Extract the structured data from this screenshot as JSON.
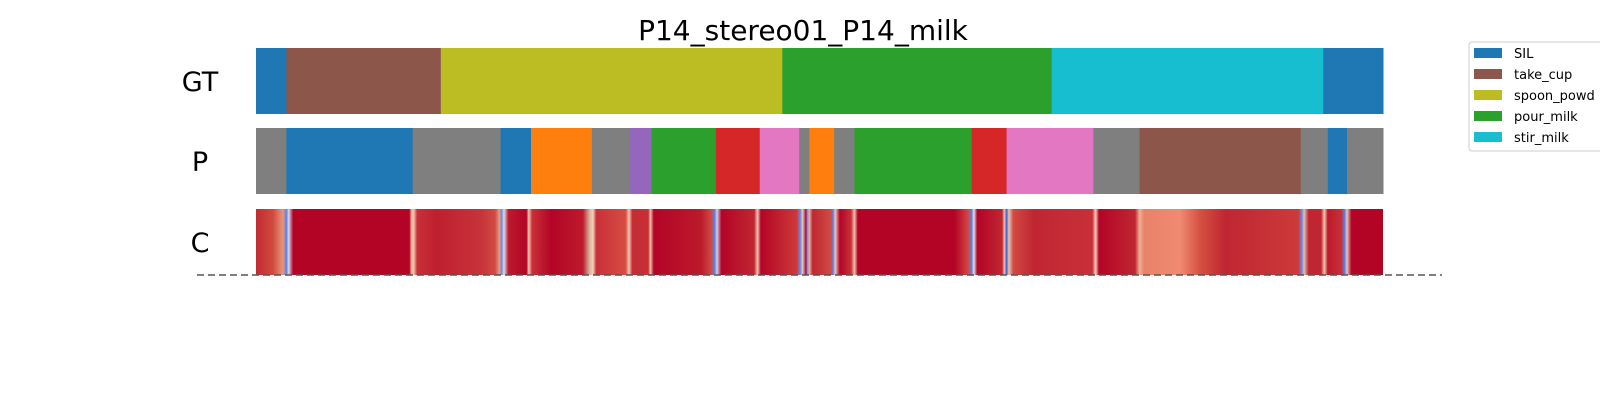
{
  "chart_data": {
    "type": "segmentation_timeline",
    "title": "P14_stereo01_P14_milk",
    "x_range": [
      0,
      1000
    ],
    "rows": [
      {
        "label": "GT",
        "segments": [
          {
            "start": 0,
            "end": 27,
            "color": "#1f77b4"
          },
          {
            "start": 27,
            "end": 164,
            "color": "#8c564b"
          },
          {
            "start": 164,
            "end": 467,
            "color": "#bcbd22"
          },
          {
            "start": 467,
            "end": 706,
            "color": "#2ca02c"
          },
          {
            "start": 706,
            "end": 947,
            "color": "#17becf"
          },
          {
            "start": 947,
            "end": 1000,
            "color": "#1f77b4"
          }
        ]
      },
      {
        "label": "P",
        "segments": [
          {
            "start": 0,
            "end": 27,
            "color": "#7f7f7f"
          },
          {
            "start": 27,
            "end": 139,
            "color": "#1f77b4"
          },
          {
            "start": 139,
            "end": 217,
            "color": "#7f7f7f"
          },
          {
            "start": 217,
            "end": 244,
            "color": "#1f77b4"
          },
          {
            "start": 244,
            "end": 298,
            "color": "#ff7f0e"
          },
          {
            "start": 298,
            "end": 331,
            "color": "#7f7f7f"
          },
          {
            "start": 331,
            "end": 351,
            "color": "#9467bd"
          },
          {
            "start": 351,
            "end": 408,
            "color": "#2ca02c"
          },
          {
            "start": 408,
            "end": 447,
            "color": "#d62728"
          },
          {
            "start": 447,
            "end": 482,
            "color": "#e377c2"
          },
          {
            "start": 482,
            "end": 491,
            "color": "#7f7f7f"
          },
          {
            "start": 491,
            "end": 513,
            "color": "#ff7f0e"
          },
          {
            "start": 513,
            "end": 531,
            "color": "#7f7f7f"
          },
          {
            "start": 531,
            "end": 635,
            "color": "#2ca02c"
          },
          {
            "start": 635,
            "end": 666,
            "color": "#d62728"
          },
          {
            "start": 666,
            "end": 743,
            "color": "#e377c2"
          },
          {
            "start": 743,
            "end": 784,
            "color": "#7f7f7f"
          },
          {
            "start": 784,
            "end": 927,
            "color": "#8c564b"
          },
          {
            "start": 927,
            "end": 951,
            "color": "#7f7f7f"
          },
          {
            "start": 951,
            "end": 968,
            "color": "#1f77b4"
          },
          {
            "start": 968,
            "end": 1000,
            "color": "#7f7f7f"
          }
        ]
      },
      {
        "label": "C",
        "base_color": "#b40426",
        "stops": [
          [
            0,
            "#c22a32"
          ],
          [
            15,
            "#d04a3f"
          ],
          [
            24,
            "#e8967a"
          ],
          [
            27,
            "#5b7fe8"
          ],
          [
            29,
            "#d8d8e8"
          ],
          [
            33,
            "#b40426"
          ],
          [
            136,
            "#b40426"
          ],
          [
            138,
            "#e8b49a"
          ],
          [
            140,
            "#f0c2a8"
          ],
          [
            143,
            "#c83038"
          ],
          [
            160,
            "#bf1f2e"
          ],
          [
            200,
            "#c8333a"
          ],
          [
            212,
            "#d04a42"
          ],
          [
            216,
            "#e89a80"
          ],
          [
            218,
            "#6a8ae8"
          ],
          [
            220,
            "#dcdce8"
          ],
          [
            224,
            "#bc1a2c"
          ],
          [
            240,
            "#b40426"
          ],
          [
            242,
            "#f2c8b0"
          ],
          [
            245,
            "#c83038"
          ],
          [
            262,
            "#b40426"
          ],
          [
            290,
            "#bd1a2c"
          ],
          [
            296,
            "#d8b4a0"
          ],
          [
            299,
            "#f4d0b8"
          ],
          [
            302,
            "#c8303a"
          ],
          [
            328,
            "#d84c42"
          ],
          [
            331,
            "#f2c8b0"
          ],
          [
            334,
            "#c42c34"
          ],
          [
            348,
            "#c83038"
          ],
          [
            350,
            "#f0c2a8"
          ],
          [
            353,
            "#b40426"
          ],
          [
            395,
            "#bc1a2c"
          ],
          [
            404,
            "#d04a42"
          ],
          [
            407,
            "#5b7fe8"
          ],
          [
            409,
            "#d0d0e4"
          ],
          [
            413,
            "#b40426"
          ],
          [
            442,
            "#c02632"
          ],
          [
            445,
            "#f2c8b0"
          ],
          [
            448,
            "#b40426"
          ],
          [
            480,
            "#cc3a3a"
          ],
          [
            483,
            "#6a8ae8"
          ],
          [
            485,
            "#e8c8b8"
          ],
          [
            488,
            "#b40426"
          ],
          [
            489,
            "#6a8ae8"
          ],
          [
            491,
            "#e8b49a"
          ],
          [
            494,
            "#c02632"
          ],
          [
            510,
            "#d04a42"
          ],
          [
            512,
            "#5b7fe8"
          ],
          [
            514,
            "#e8c8b8"
          ],
          [
            518,
            "#b40426"
          ],
          [
            528,
            "#c83038"
          ],
          [
            531,
            "#f0c2a8"
          ],
          [
            534,
            "#b40426"
          ],
          [
            620,
            "#b40426"
          ],
          [
            628,
            "#c83038"
          ],
          [
            632,
            "#d04a42"
          ],
          [
            635,
            "#5b7fe8"
          ],
          [
            637,
            "#e0e0ea"
          ],
          [
            640,
            "#b40426"
          ],
          [
            662,
            "#c02632"
          ],
          [
            664,
            "#f0c2a8"
          ],
          [
            666,
            "#3b5ee0"
          ],
          [
            668,
            "#f0c2a8"
          ],
          [
            672,
            "#d04a42"
          ],
          [
            690,
            "#c02632"
          ],
          [
            742,
            "#c83038"
          ],
          [
            745,
            "#f4d0b8"
          ],
          [
            748,
            "#b40426"
          ],
          [
            780,
            "#c02632"
          ],
          [
            784,
            "#f0b090"
          ],
          [
            788,
            "#e8836a"
          ],
          [
            820,
            "#f08a70"
          ],
          [
            838,
            "#d45040"
          ],
          [
            860,
            "#c02632"
          ],
          [
            925,
            "#cc3a3a"
          ],
          [
            928,
            "#6a8ae8"
          ],
          [
            930,
            "#e0c0b0"
          ],
          [
            934,
            "#c02632"
          ],
          [
            945,
            "#c02632"
          ],
          [
            948,
            "#f2c8b0"
          ],
          [
            951,
            "#bc1a2c"
          ],
          [
            963,
            "#c83038"
          ],
          [
            966,
            "#5b7fe8"
          ],
          [
            968,
            "#e8c8b8"
          ],
          [
            972,
            "#b40426"
          ],
          [
            1000,
            "#b40426"
          ]
        ]
      }
    ],
    "legend": {
      "placement": "top-right",
      "entries": [
        {
          "label": "SIL",
          "color": "#1f77b4"
        },
        {
          "label": "take_cup",
          "color": "#8c564b"
        },
        {
          "label": "spoon_powd",
          "color": "#bcbd22"
        },
        {
          "label": "pour_milk",
          "color": "#2ca02c"
        },
        {
          "label": "stir_milk",
          "color": "#17becf"
        }
      ]
    },
    "baseline": {
      "style": "dashed",
      "color": "#555555"
    }
  }
}
